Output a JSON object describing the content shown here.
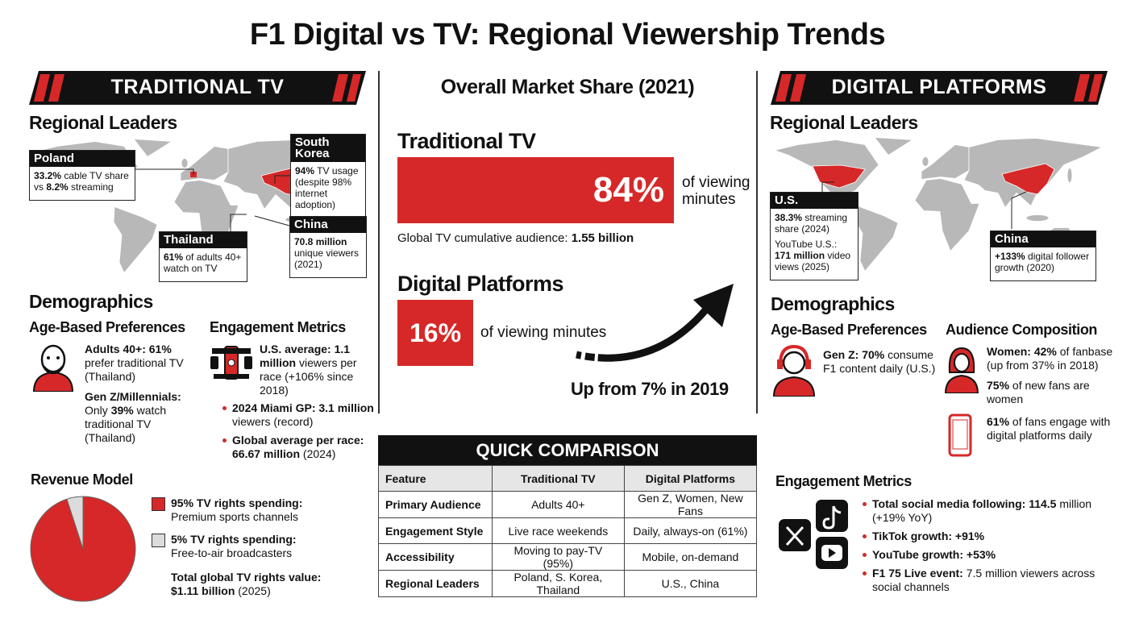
{
  "title": "F1 Digital vs TV: Regional Viewership Trends",
  "tv": {
    "banner": "TRADITIONAL TV",
    "regional_heading": "Regional Leaders",
    "callouts": [
      {
        "name": "Poland",
        "paragraphs": [
          [
            {
              "strong": "33.2%"
            },
            {
              "text": " cable TV share vs "
            },
            {
              "strong": "8.2%"
            },
            {
              "text": " streaming"
            }
          ]
        ]
      },
      {
        "name": "South Korea",
        "paragraphs": [
          [
            {
              "strong": "94%"
            },
            {
              "text": " TV usage (despite 98% internet adoption)"
            }
          ]
        ]
      },
      {
        "name": "Thailand",
        "paragraphs": [
          [
            {
              "strong": "61%"
            },
            {
              "text": " of adults 40+ watch on TV"
            }
          ]
        ]
      },
      {
        "name": "China",
        "paragraphs": [
          [
            {
              "strong": "70.8 million"
            },
            {
              "text": " unique viewers (2021)"
            }
          ]
        ]
      }
    ],
    "demographics_heading": "Demographics",
    "age_heading": "Age-Based Preferences",
    "age_items": [
      [
        {
          "strong": "Adults 40+: 61%"
        },
        {
          "text": " prefer traditional TV (Thailand)"
        }
      ],
      [
        {
          "strong": "Gen Z/Millennials:"
        },
        {
          "text": " Only "
        },
        {
          "strong": "39%"
        },
        {
          "text": " watch traditional TV (Thailand)"
        }
      ]
    ],
    "engagement_heading": "Engagement Metrics",
    "engagement_lead": [
      {
        "strong": "U.S. average: 1.1 million"
      },
      {
        "text": " viewers per race (+106% since 2018)"
      }
    ],
    "engagement_items": [
      [
        {
          "strong": "2024 Miami GP: 3.1 million"
        },
        {
          "text": " viewers (record)"
        }
      ],
      [
        {
          "strong": "Global average per race: 66.67 million"
        },
        {
          "text": " (2024)"
        }
      ]
    ],
    "revenue_heading": "Revenue Model",
    "revenue": [
      {
        "value": 95,
        "color": "#d62828",
        "label": "95% TV rights spending:",
        "detail": "Premium sports channels"
      },
      {
        "value": 5,
        "color": "#dcdcdc",
        "label": "5% TV rights spending:",
        "detail": "Free-to-air broadcasters"
      }
    ],
    "revenue_total_label": "Total global TV rights value:",
    "revenue_total": [
      {
        "strong": "$1.11 billion"
      },
      {
        "text": " (2025)"
      }
    ]
  },
  "market": {
    "heading": "Overall Market Share (2021)",
    "tv": {
      "label": "Traditional TV",
      "share": "84%",
      "unit": "of viewing minutes",
      "note": [
        {
          "text": "Global TV cumulative audience: "
        },
        {
          "strong": "1.55 billion"
        }
      ]
    },
    "digital": {
      "label": "Digital Platforms",
      "share": "16%",
      "unit": "of viewing minutes"
    },
    "trend": "Up from 7% in 2019"
  },
  "table": {
    "title": "QUICK COMPARISON",
    "header": [
      "Feature",
      "Traditional TV",
      "Digital Platforms"
    ],
    "rows": [
      [
        "Primary Audience",
        "Adults 40+",
        "Gen Z, Women, New Fans"
      ],
      [
        "Engagement Style",
        "Live race weekends",
        "Daily, always-on (61%)"
      ],
      [
        "Accessibility",
        "Moving to pay-TV (95%)",
        "Mobile, on-demand"
      ],
      [
        "Regional Leaders",
        "Poland, S. Korea, Thailand",
        "U.S., China"
      ]
    ]
  },
  "digital": {
    "banner": "DIGITAL PLATFORMS",
    "regional_heading": "Regional Leaders",
    "callouts": [
      {
        "name": "U.S.",
        "paragraphs": [
          [
            {
              "strong": "38.3%"
            },
            {
              "text": " streaming share (2024)"
            }
          ],
          [
            {
              "text": "YouTube U.S.: "
            },
            {
              "strong": "171 million"
            },
            {
              "text": " video views (2025)"
            }
          ]
        ]
      },
      {
        "name": "China",
        "paragraphs": [
          [
            {
              "strong": "+133%"
            },
            {
              "text": " digital follower growth (2020)"
            }
          ]
        ]
      }
    ],
    "demographics_heading": "Demographics",
    "age_heading": "Age-Based Preferences",
    "age_items": [
      [
        {
          "strong": "Gen Z: 70%"
        },
        {
          "text": " consume F1 content daily (U.S.)"
        }
      ]
    ],
    "audience_heading": "Audience Composition",
    "audience_items": [
      [
        {
          "strong": "Women: 42%"
        },
        {
          "text": " of fanbase (up from 37% in 2018)"
        }
      ],
      [
        {
          "strong": "75%"
        },
        {
          "text": " of new fans are women"
        }
      ],
      [
        {
          "strong": "61%"
        },
        {
          "text": " of fans engage with digital platforms daily"
        }
      ]
    ],
    "engagement_heading": "Engagement Metrics",
    "engagement_items": [
      [
        {
          "strong": "Total social media following: 114.5"
        },
        {
          "text": " million (+19% YoY)"
        }
      ],
      [
        {
          "strong": "TikTok growth: +91%"
        }
      ],
      [
        {
          "strong": "YouTube growth: +53%"
        }
      ],
      [
        {
          "strong": "F1 75 Live event:"
        },
        {
          "text": " 7.5 million viewers across social channels"
        }
      ]
    ]
  }
}
